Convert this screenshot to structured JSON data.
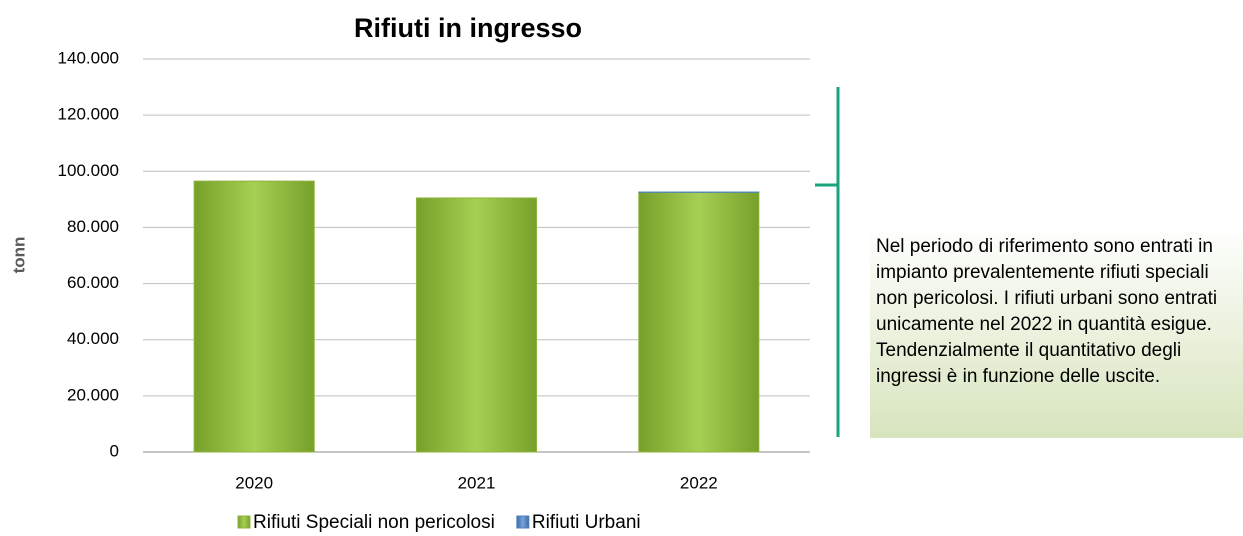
{
  "chart_data": {
    "type": "bar",
    "stacked": true,
    "title": "Rifiuti in ingresso",
    "y_label": "tonn",
    "categories": [
      "2020",
      "2021",
      "2022"
    ],
    "series": [
      {
        "name": "Rifiuti Speciali non pericolosi",
        "color": "#8db43a",
        "values": [
          96500,
          90500,
          92500
        ]
      },
      {
        "name": "Rifiuti Urbani",
        "color": "#4f81bd",
        "values": [
          0,
          0,
          100
        ]
      }
    ],
    "ylim": [
      0,
      140000
    ],
    "yticks": [
      0,
      {
        "value": 20000,
        "label": "20.000"
      },
      {
        "value": 40000,
        "label": "40.000"
      },
      {
        "value": 60000,
        "label": "60.000"
      },
      {
        "value": 80000,
        "label": "80.000"
      },
      {
        "value": 100000,
        "label": "100.000"
      },
      {
        "value": 120000,
        "label": "120.000"
      },
      {
        "value": 140000,
        "label": "140.000"
      }
    ],
    "grid": true,
    "legend": "bottom",
    "annotation": "Nel periodo di riferimento sono entrati in impianto prevalentemente rifiuti speciali non pericolosi. I rifiuti urbani sono entrati unicamente nel 2022 in quantità esigue. Tendenzialmente il quantitativo degli ingressi è in funzione delle uscite."
  }
}
